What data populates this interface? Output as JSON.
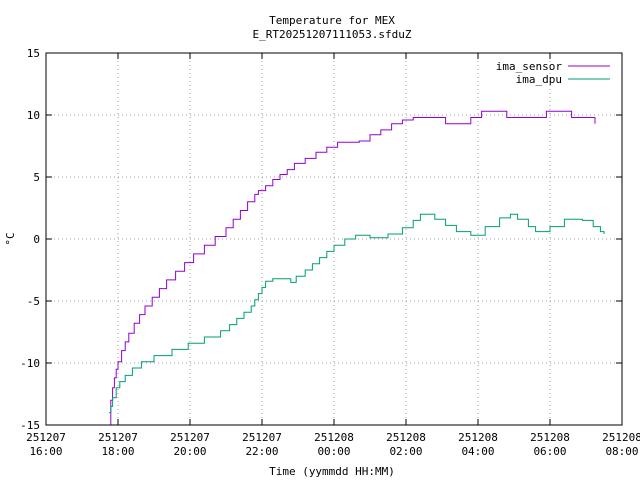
{
  "chart_data": {
    "type": "line",
    "title": "Temperature for MEX",
    "subtitle": "E_RT20251207111053.sfduZ",
    "xlabel": "Time (yymmdd HH:MM)",
    "ylabel": "°C",
    "xlim": [
      "2025-12-07 16:00",
      "2025-12-08 08:00"
    ],
    "ylim": [
      -15,
      15
    ],
    "x_ticks": [
      {
        "t": "2025-12-07 16:00",
        "date": "251207",
        "time": "16:00"
      },
      {
        "t": "2025-12-07 18:00",
        "date": "251207",
        "time": "18:00"
      },
      {
        "t": "2025-12-07 20:00",
        "date": "251207",
        "time": "20:00"
      },
      {
        "t": "2025-12-07 22:00",
        "date": "251207",
        "time": "22:00"
      },
      {
        "t": "2025-12-08 00:00",
        "date": "251208",
        "time": "00:00"
      },
      {
        "t": "2025-12-08 02:00",
        "date": "251208",
        "time": "02:00"
      },
      {
        "t": "2025-12-08 04:00",
        "date": "251208",
        "time": "04:00"
      },
      {
        "t": "2025-12-08 06:00",
        "date": "251208",
        "time": "06:00"
      },
      {
        "t": "2025-12-08 08:00",
        "date": "251208",
        "time": "08:00"
      }
    ],
    "y_ticks": [
      -15,
      -10,
      -5,
      0,
      5,
      10,
      15
    ],
    "grid": true,
    "legend": "top-right",
    "series": [
      {
        "name": "ima_sensor",
        "color": "#9400d3",
        "points": [
          [
            "2025-12-07 17:45",
            -15.0
          ],
          [
            "2025-12-07 17:48",
            -13.0
          ],
          [
            "2025-12-07 17:51",
            -12.0
          ],
          [
            "2025-12-07 17:54",
            -11.2
          ],
          [
            "2025-12-07 17:57",
            -10.5
          ],
          [
            "2025-12-07 18:00",
            -9.9
          ],
          [
            "2025-12-07 18:06",
            -9.0
          ],
          [
            "2025-12-07 18:12",
            -8.3
          ],
          [
            "2025-12-07 18:18",
            -7.6
          ],
          [
            "2025-12-07 18:27",
            -6.8
          ],
          [
            "2025-12-07 18:36",
            -6.1
          ],
          [
            "2025-12-07 18:45",
            -5.4
          ],
          [
            "2025-12-07 18:57",
            -4.7
          ],
          [
            "2025-12-07 19:09",
            -4.0
          ],
          [
            "2025-12-07 19:21",
            -3.3
          ],
          [
            "2025-12-07 19:36",
            -2.6
          ],
          [
            "2025-12-07 19:51",
            -1.9
          ],
          [
            "2025-12-07 20:06",
            -1.2
          ],
          [
            "2025-12-07 20:24",
            -0.5
          ],
          [
            "2025-12-07 20:42",
            0.2
          ],
          [
            "2025-12-07 21:00",
            0.9
          ],
          [
            "2025-12-07 21:12",
            1.6
          ],
          [
            "2025-12-07 21:24",
            2.3
          ],
          [
            "2025-12-07 21:36",
            3.0
          ],
          [
            "2025-12-07 21:48",
            3.6
          ],
          [
            "2025-12-07 21:54",
            3.9
          ],
          [
            "2025-12-07 22:00",
            3.9
          ],
          [
            "2025-12-07 22:06",
            4.3
          ],
          [
            "2025-12-07 22:18",
            4.8
          ],
          [
            "2025-12-07 22:30",
            5.2
          ],
          [
            "2025-12-07 22:42",
            5.6
          ],
          [
            "2025-12-07 22:54",
            6.1
          ],
          [
            "2025-12-07 23:12",
            6.5
          ],
          [
            "2025-12-07 23:30",
            7.0
          ],
          [
            "2025-12-07 23:48",
            7.4
          ],
          [
            "2025-12-08 00:06",
            7.8
          ],
          [
            "2025-12-08 00:24",
            7.8
          ],
          [
            "2025-12-08 00:42",
            7.9
          ],
          [
            "2025-12-08 01:00",
            8.4
          ],
          [
            "2025-12-08 01:18",
            8.8
          ],
          [
            "2025-12-08 01:36",
            9.3
          ],
          [
            "2025-12-08 01:54",
            9.6
          ],
          [
            "2025-12-08 02:12",
            9.8
          ],
          [
            "2025-12-08 02:36",
            9.8
          ],
          [
            "2025-12-08 03:06",
            9.3
          ],
          [
            "2025-12-08 03:48",
            9.8
          ],
          [
            "2025-12-08 04:06",
            10.3
          ],
          [
            "2025-12-08 04:48",
            9.8
          ],
          [
            "2025-12-08 05:36",
            9.8
          ],
          [
            "2025-12-08 05:54",
            10.3
          ],
          [
            "2025-12-08 06:36",
            9.8
          ],
          [
            "2025-12-08 07:06",
            9.8
          ],
          [
            "2025-12-08 07:15",
            9.3
          ]
        ]
      },
      {
        "name": "ima_dpu",
        "color": "#009e73",
        "points": [
          [
            "2025-12-07 17:45",
            -14.0
          ],
          [
            "2025-12-07 17:48",
            -13.5
          ],
          [
            "2025-12-07 17:51",
            -12.8
          ],
          [
            "2025-12-07 17:57",
            -12.0
          ],
          [
            "2025-12-07 18:03",
            -11.5
          ],
          [
            "2025-12-07 18:12",
            -11.0
          ],
          [
            "2025-12-07 18:24",
            -10.4
          ],
          [
            "2025-12-07 18:39",
            -9.9
          ],
          [
            "2025-12-07 19:00",
            -9.4
          ],
          [
            "2025-12-07 19:30",
            -8.9
          ],
          [
            "2025-12-07 19:57",
            -8.4
          ],
          [
            "2025-12-07 20:24",
            -7.9
          ],
          [
            "2025-12-07 20:51",
            -7.4
          ],
          [
            "2025-12-07 21:06",
            -6.9
          ],
          [
            "2025-12-07 21:18",
            -6.4
          ],
          [
            "2025-12-07 21:30",
            -5.9
          ],
          [
            "2025-12-07 21:42",
            -5.4
          ],
          [
            "2025-12-07 21:48",
            -4.9
          ],
          [
            "2025-12-07 21:54",
            -4.4
          ],
          [
            "2025-12-07 22:00",
            -3.9
          ],
          [
            "2025-12-07 22:06",
            -3.4
          ],
          [
            "2025-12-07 22:18",
            -3.2
          ],
          [
            "2025-12-07 22:48",
            -3.5
          ],
          [
            "2025-12-07 22:57",
            -3.0
          ],
          [
            "2025-12-07 23:12",
            -2.5
          ],
          [
            "2025-12-07 23:24",
            -2.0
          ],
          [
            "2025-12-07 23:36",
            -1.5
          ],
          [
            "2025-12-07 23:48",
            -1.0
          ],
          [
            "2025-12-08 00:00",
            -0.5
          ],
          [
            "2025-12-08 00:18",
            0.0
          ],
          [
            "2025-12-08 00:36",
            0.3
          ],
          [
            "2025-12-08 01:00",
            0.1
          ],
          [
            "2025-12-08 01:30",
            0.4
          ],
          [
            "2025-12-08 01:54",
            0.9
          ],
          [
            "2025-12-08 02:12",
            1.5
          ],
          [
            "2025-12-08 02:24",
            2.0
          ],
          [
            "2025-12-08 02:48",
            1.6
          ],
          [
            "2025-12-08 03:06",
            1.1
          ],
          [
            "2025-12-08 03:24",
            0.6
          ],
          [
            "2025-12-08 03:48",
            0.3
          ],
          [
            "2025-12-08 04:12",
            1.0
          ],
          [
            "2025-12-08 04:36",
            1.7
          ],
          [
            "2025-12-08 04:54",
            2.0
          ],
          [
            "2025-12-08 05:06",
            1.6
          ],
          [
            "2025-12-08 05:24",
            1.0
          ],
          [
            "2025-12-08 05:36",
            0.6
          ],
          [
            "2025-12-08 06:00",
            1.0
          ],
          [
            "2025-12-08 06:24",
            1.6
          ],
          [
            "2025-12-08 06:54",
            1.5
          ],
          [
            "2025-12-08 07:12",
            1.0
          ],
          [
            "2025-12-08 07:24",
            0.6
          ],
          [
            "2025-12-08 07:30",
            0.4
          ]
        ]
      }
    ]
  }
}
